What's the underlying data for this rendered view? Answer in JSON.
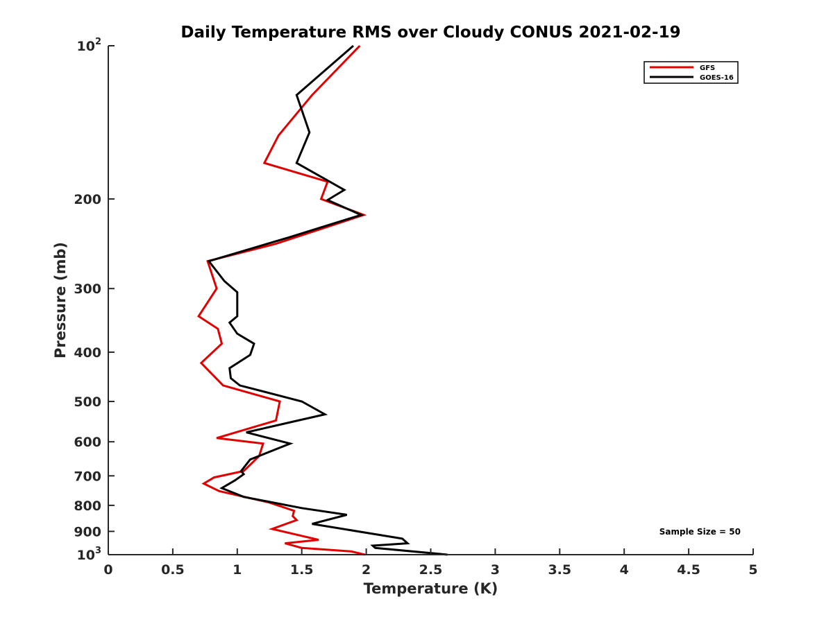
{
  "chart_data": {
    "type": "line",
    "title": "Daily Temperature RMS over Cloudy CONUS 2021-02-19",
    "xlabel": "Temperature (K)",
    "ylabel": "Pressure (mb)",
    "xlim": [
      0,
      5
    ],
    "ylim": [
      100,
      1000
    ],
    "y_scale": "log",
    "y_reversed": true,
    "grid": false,
    "legend_placement": "top-right",
    "x_ticks": [
      "0",
      "0.5",
      "1",
      "1.5",
      "2",
      "2.5",
      "3",
      "3.5",
      "4",
      "4.5",
      "5"
    ],
    "x_tick_values": [
      0,
      0.5,
      1,
      1.5,
      2,
      2.5,
      3,
      3.5,
      4,
      4.5,
      5
    ],
    "y_ticks": [
      {
        "value": 100,
        "base": "10",
        "exp": "2"
      },
      {
        "value": 200,
        "label": "200"
      },
      {
        "value": 300,
        "label": "300"
      },
      {
        "value": 400,
        "label": "400"
      },
      {
        "value": 500,
        "label": "500"
      },
      {
        "value": 600,
        "label": "600"
      },
      {
        "value": 700,
        "label": "700"
      },
      {
        "value": 800,
        "label": "800"
      },
      {
        "value": 900,
        "label": "900"
      },
      {
        "value": 1000,
        "base": "10",
        "exp": "3"
      }
    ],
    "series": [
      {
        "name": "GFS",
        "color": "#e00000",
        "points": [
          [
            1.95,
            100
          ],
          [
            1.58,
            125
          ],
          [
            1.32,
            150
          ],
          [
            1.21,
            170
          ],
          [
            1.7,
            185
          ],
          [
            1.65,
            200
          ],
          [
            1.98,
            215
          ],
          [
            1.3,
            245
          ],
          [
            0.77,
            265
          ],
          [
            0.84,
            300
          ],
          [
            0.7,
            340
          ],
          [
            0.85,
            360
          ],
          [
            0.88,
            385
          ],
          [
            0.72,
            420
          ],
          [
            0.89,
            465
          ],
          [
            1.33,
            500
          ],
          [
            1.3,
            545
          ],
          [
            0.84,
            590
          ],
          [
            1.2,
            605
          ],
          [
            1.17,
            640
          ],
          [
            1.05,
            685
          ],
          [
            0.82,
            705
          ],
          [
            0.74,
            725
          ],
          [
            0.86,
            750
          ],
          [
            1.25,
            790
          ],
          [
            1.44,
            820
          ],
          [
            1.43,
            840
          ],
          [
            1.46,
            855
          ],
          [
            1.27,
            890
          ],
          [
            1.63,
            935
          ],
          [
            1.37,
            950
          ],
          [
            1.5,
            970
          ],
          [
            1.88,
            985
          ],
          [
            1.99,
            1000
          ]
        ]
      },
      {
        "name": "GOES-16",
        "color": "#000000",
        "points": [
          [
            1.9,
            100
          ],
          [
            1.46,
            125
          ],
          [
            1.56,
            148
          ],
          [
            1.46,
            170
          ],
          [
            1.83,
            192
          ],
          [
            1.7,
            201
          ],
          [
            1.96,
            215
          ],
          [
            1.4,
            238
          ],
          [
            0.78,
            265
          ],
          [
            0.9,
            290
          ],
          [
            1.0,
            305
          ],
          [
            1.0,
            340
          ],
          [
            0.94,
            350
          ],
          [
            1.0,
            368
          ],
          [
            1.13,
            385
          ],
          [
            1.1,
            405
          ],
          [
            0.94,
            430
          ],
          [
            0.95,
            450
          ],
          [
            1.02,
            465
          ],
          [
            1.5,
            500
          ],
          [
            1.68,
            530
          ],
          [
            1.07,
            575
          ],
          [
            1.41,
            605
          ],
          [
            1.1,
            650
          ],
          [
            1.03,
            685
          ],
          [
            1.05,
            695
          ],
          [
            0.98,
            715
          ],
          [
            0.88,
            740
          ],
          [
            1.05,
            770
          ],
          [
            1.5,
            810
          ],
          [
            1.85,
            835
          ],
          [
            1.58,
            870
          ],
          [
            2.28,
            930
          ],
          [
            2.32,
            950
          ],
          [
            2.05,
            960
          ],
          [
            2.07,
            970
          ],
          [
            2.63,
            1000
          ]
        ]
      }
    ],
    "legend": [
      {
        "name": "GFS",
        "color": "#e00000"
      },
      {
        "name": "GOES-16",
        "color": "#000000"
      }
    ],
    "annotation": "Sample Size = 50"
  }
}
